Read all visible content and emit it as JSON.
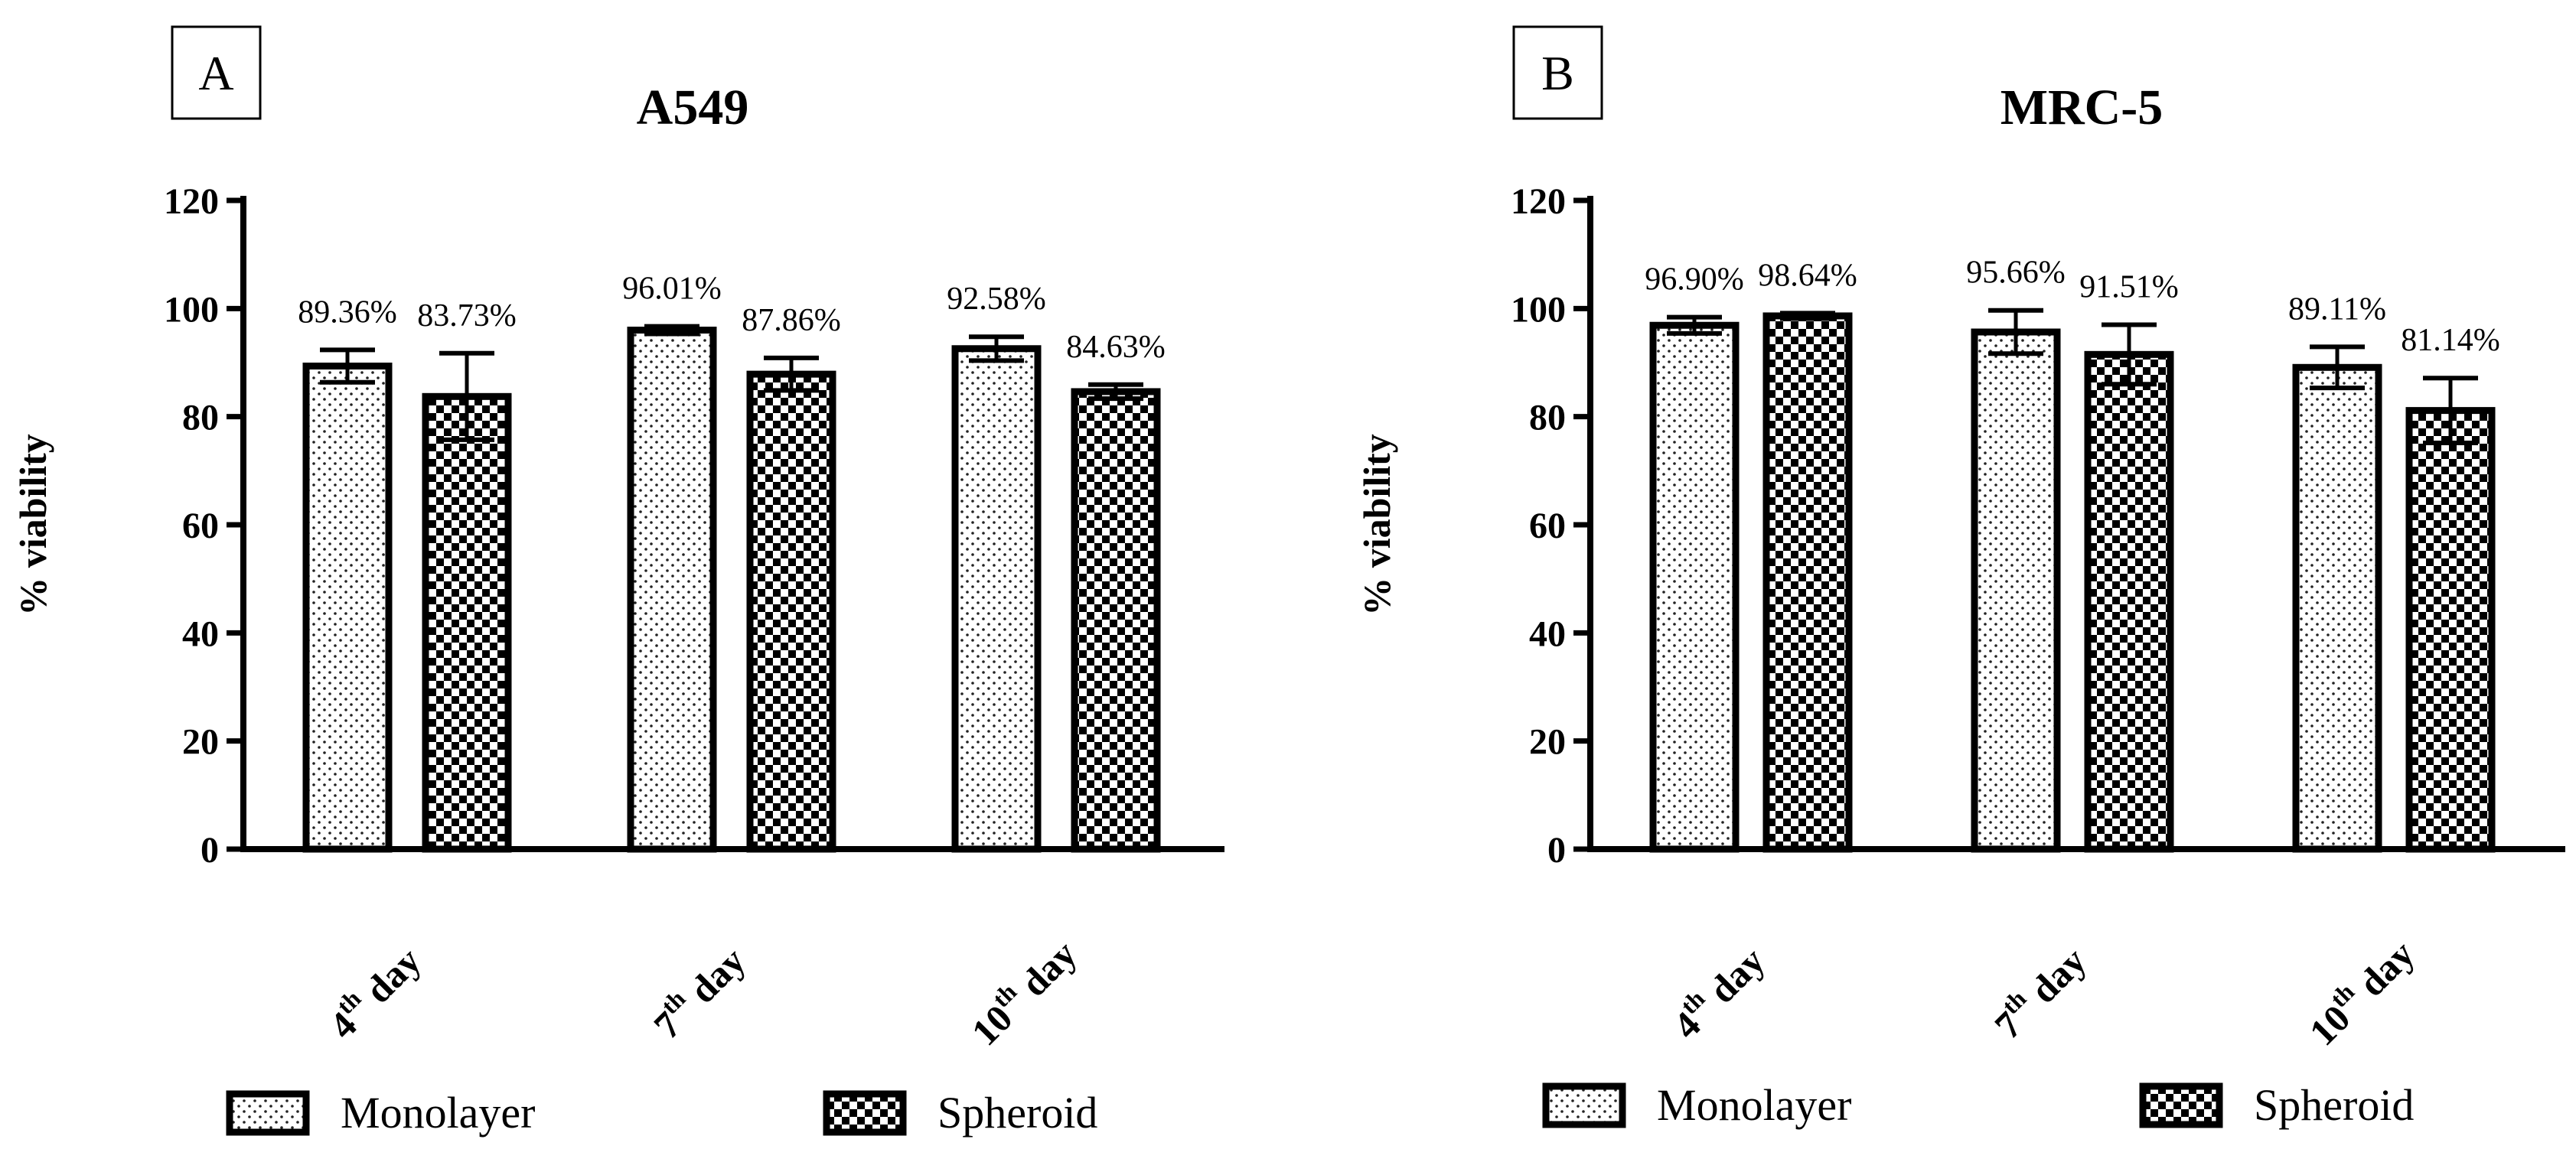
{
  "chart_data": [
    {
      "type": "bar",
      "panel": "A",
      "title": "A549",
      "ylabel": "% viability",
      "xlabel": "",
      "ylim": [
        0,
        120
      ],
      "yticks": [
        "0",
        "20",
        "40",
        "60",
        "80",
        "100",
        "120"
      ],
      "categories": [
        {
          "num": "4",
          "sup": "th",
          "word": " day"
        },
        {
          "num": "7",
          "sup": "th",
          "word": " day"
        },
        {
          "num": "10",
          "sup": "th",
          "word": " day"
        }
      ],
      "series": [
        {
          "name": "Monolayer",
          "pattern": "dots",
          "values": [
            89.36,
            96.01,
            92.58
          ],
          "errors": [
            3,
            0.7,
            2.2
          ],
          "labels": [
            "89.36%",
            "96.01%",
            "92.58%"
          ]
        },
        {
          "name": "Spheroid",
          "pattern": "checker",
          "values": [
            83.73,
            87.86,
            84.63
          ],
          "errors": [
            8,
            3,
            1.3
          ],
          "labels": [
            "83.73%",
            "87.86%",
            "84.63%"
          ]
        }
      ]
    },
    {
      "type": "bar",
      "panel": "B",
      "title": "MRC-5",
      "ylabel": "% viability",
      "xlabel": "",
      "ylim": [
        0,
        120
      ],
      "yticks": [
        "0",
        "20",
        "40",
        "60",
        "80",
        "100",
        "120"
      ],
      "categories": [
        {
          "num": "4",
          "sup": "th",
          "word": " day"
        },
        {
          "num": "7",
          "sup": "th",
          "word": " day"
        },
        {
          "num": "10",
          "sup": "th",
          "word": " day"
        }
      ],
      "series": [
        {
          "name": "Monolayer",
          "pattern": "dots",
          "values": [
            96.9,
            95.66,
            89.11
          ],
          "errors": [
            1.5,
            4,
            3.8
          ],
          "labels": [
            "96.90%",
            "95.66%",
            "89.11%"
          ]
        },
        {
          "name": "Spheroid",
          "pattern": "checker",
          "values": [
            98.64,
            91.51,
            81.14
          ],
          "errors": [
            0.5,
            5.5,
            6
          ]
        }
      ]
    }
  ],
  "legend": [
    {
      "label": "Monolayer",
      "pattern": "dots"
    },
    {
      "label": "Spheroid",
      "pattern": "checker"
    }
  ]
}
